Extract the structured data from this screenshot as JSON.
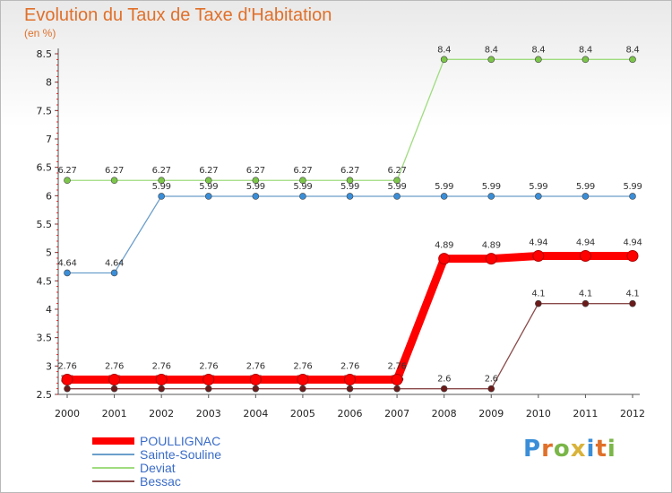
{
  "header": {
    "title": "Evolution du Taux de Taxe d'Habitation",
    "subtitle": "(en %)"
  },
  "logo": {
    "text": "Proxiti",
    "colors": [
      "#3a8ed8",
      "#e0702a",
      "#7ab648",
      "#d9b33a",
      "#3a8ed8",
      "#e0702a",
      "#7ab648"
    ]
  },
  "chart_data": {
    "type": "line",
    "title": "Evolution du Taux de Taxe d'Habitation",
    "ylabel": "(en %)",
    "xlabel": "",
    "x": [
      "2000",
      "2001",
      "2002",
      "2003",
      "2004",
      "2005",
      "2006",
      "2007",
      "2008",
      "2009",
      "2010",
      "2011",
      "2012"
    ],
    "ylim": [
      2.5,
      8.5
    ],
    "yticks": [
      "2.5",
      "3",
      "3.5",
      "4",
      "4.5",
      "5",
      "5.5",
      "6",
      "6.5",
      "7",
      "7.5",
      "8",
      "8.5"
    ],
    "grid": false,
    "legend_position": "bottom-left",
    "series": [
      {
        "name": "POULLIGNAC",
        "color": "#ff0000",
        "highlight": true,
        "values": [
          2.76,
          2.76,
          2.76,
          2.76,
          2.76,
          2.76,
          2.76,
          2.76,
          4.89,
          4.89,
          4.94,
          4.94,
          4.94
        ],
        "labels": [
          "2.76",
          "2.76",
          "2.76",
          "2.76",
          "2.76",
          "2.76",
          "2.76",
          "2.76",
          "4.89",
          "4.89",
          "4.94",
          "4.94",
          "4.94"
        ]
      },
      {
        "name": "Sainte-Souline",
        "color": "#6b9ecb",
        "marker": "#3a8ed8",
        "values": [
          4.64,
          4.64,
          5.99,
          5.99,
          5.99,
          5.99,
          5.99,
          5.99,
          5.99,
          5.99,
          5.99,
          5.99,
          5.99
        ],
        "labels": [
          "4.64",
          "4.64",
          "5.99",
          "5.99",
          "5.99",
          "5.99",
          "5.99",
          "5.99",
          "5.99",
          "5.99",
          "5.99",
          "5.99",
          "5.99"
        ]
      },
      {
        "name": "Deviat",
        "color": "#9fdc7f",
        "marker": "#7cc64a",
        "values": [
          6.27,
          6.27,
          6.27,
          6.27,
          6.27,
          6.27,
          6.27,
          6.27,
          8.4,
          8.4,
          8.4,
          8.4,
          8.4
        ],
        "labels": [
          "6.27",
          "6.27",
          "6.27",
          "6.27",
          "6.27",
          "6.27",
          "6.27",
          "6.27",
          "8.4",
          "8.4",
          "8.4",
          "8.4",
          "8.4"
        ]
      },
      {
        "name": "Bessac",
        "color": "#8a4a4a",
        "marker": "#6b1a1a",
        "values": [
          2.6,
          2.6,
          2.6,
          2.6,
          2.6,
          2.6,
          2.6,
          2.6,
          2.6,
          2.6,
          4.1,
          4.1,
          4.1
        ],
        "labels": [
          "2.6",
          "2.6",
          "2.6",
          "2.6",
          "2.6",
          "2.6",
          "2.6",
          "2.6",
          "2.6",
          "2.6",
          "4.1",
          "4.1",
          "4.1"
        ]
      }
    ]
  }
}
